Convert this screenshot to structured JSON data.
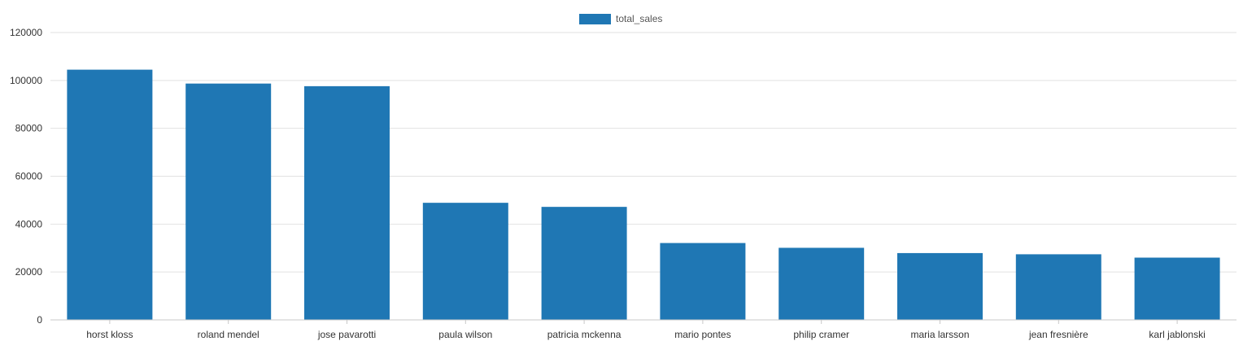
{
  "chart_data": {
    "type": "bar",
    "categories": [
      "horst kloss",
      "roland mendel",
      "jose pavarotti",
      "paula wilson",
      "patricia mckenna",
      "mario pontes",
      "philip cramer",
      "maria larsson",
      "jean fresnière",
      "karl jablonski"
    ],
    "series": [
      {
        "name": "total_sales",
        "color": "#1f77b4",
        "values": [
          104500,
          98700,
          97600,
          48900,
          47200,
          32100,
          30100,
          27900,
          27400,
          26000
        ]
      }
    ],
    "y_ticks": [
      "0",
      "20000",
      "40000",
      "60000",
      "80000",
      "100000",
      "120000"
    ],
    "ylim": [
      0,
      120000
    ],
    "grid": true,
    "legend_position": "top-center"
  }
}
